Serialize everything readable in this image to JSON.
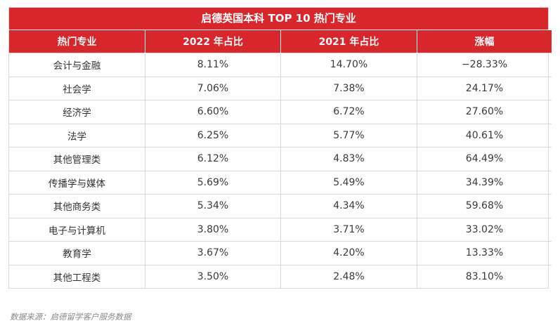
{
  "title": "启德英国本科 TOP 10 热门专业",
  "headers": [
    "热门专业",
    "2022 年占比",
    "2021 年占比",
    "涨幅"
  ],
  "rows": [
    [
      "会计与金融",
      "8.11%",
      "14.70%",
      "−28.33%"
    ],
    [
      "社会学",
      "7.06%",
      "7.38%",
      "24.17%"
    ],
    [
      "经济学",
      "6.60%",
      "6.72%",
      "27.60%"
    ],
    [
      "法学",
      "6.25%",
      "5.77%",
      "40.61%"
    ],
    [
      "其他管理类",
      "6.12%",
      "4.83%",
      "64.49%"
    ],
    [
      "传播学与媒体",
      "5.69%",
      "5.49%",
      "34.39%"
    ],
    [
      "其他商务类",
      "5.34%",
      "4.34%",
      "59.68%"
    ],
    [
      "电子与计算机",
      "3.80%",
      "3.71%",
      "33.02%"
    ],
    [
      "教育学",
      "3.67%",
      "4.20%",
      "13.33%"
    ],
    [
      "其他工程类",
      "3.50%",
      "2.48%",
      "83.10%"
    ]
  ],
  "source": "数据来源：启德留学客户服务数据",
  "colors": {
    "header_bg": "#d8262b",
    "header_text": "#ffffff",
    "border": "#d9d9d9",
    "cell_text": "#3a3a3a"
  }
}
